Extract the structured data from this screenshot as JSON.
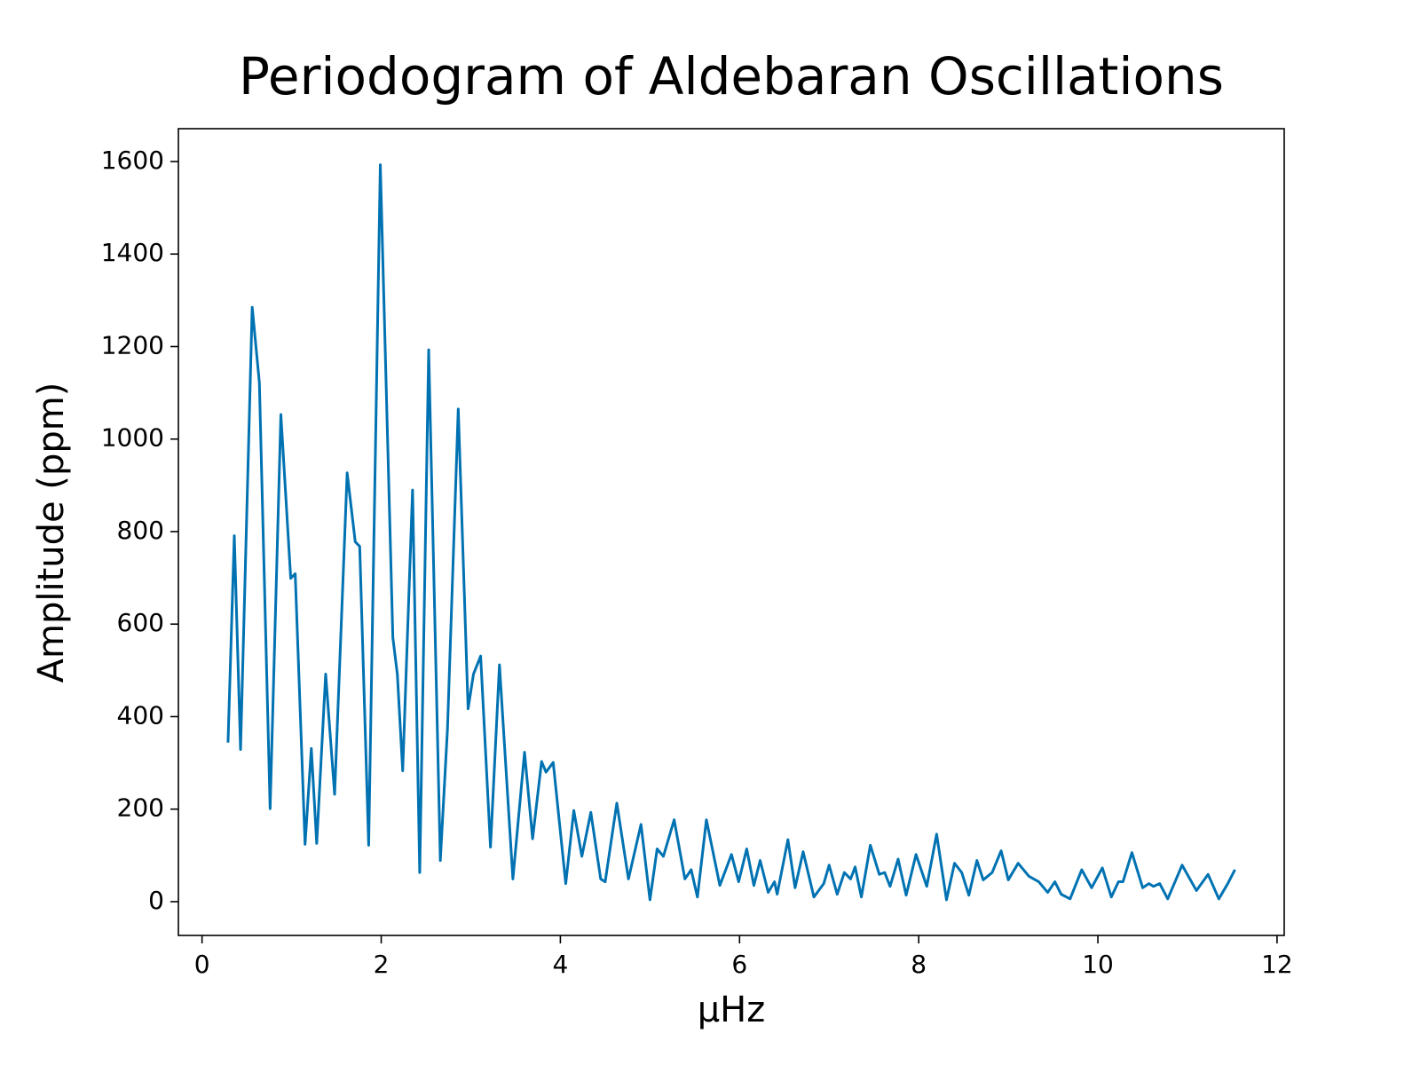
{
  "chart_data": {
    "type": "line",
    "title": "Periodogram of Aldebaran Oscillations",
    "x_label": "μHz",
    "y_label": "Amplitude (ppm)",
    "color": "#0072b2",
    "grid": false,
    "xlim": [
      -0.264,
      12.08
    ],
    "ylim": [
      -73,
      1671
    ],
    "xticks": [
      0,
      2,
      4,
      6,
      8,
      10,
      12
    ],
    "yticks": [
      0,
      200,
      400,
      600,
      800,
      1000,
      1200,
      1400,
      1600
    ],
    "x": [
      0.29,
      0.36,
      0.43,
      0.56,
      0.64,
      0.76,
      0.88,
      0.99,
      1.04,
      1.15,
      1.22,
      1.28,
      1.38,
      1.48,
      1.62,
      1.71,
      1.76,
      1.86,
      1.99,
      2.13,
      2.18,
      2.24,
      2.35,
      2.43,
      2.53,
      2.66,
      2.74,
      2.86,
      2.97,
      3.03,
      3.11,
      3.22,
      3.32,
      3.47,
      3.6,
      3.69,
      3.79,
      3.84,
      3.92,
      4.06,
      4.15,
      4.24,
      4.34,
      4.45,
      4.5,
      4.63,
      4.76,
      4.9,
      5.0,
      5.08,
      5.15,
      5.27,
      5.39,
      5.46,
      5.53,
      5.63,
      5.78,
      5.91,
      5.99,
      6.08,
      6.16,
      6.23,
      6.32,
      6.39,
      6.42,
      6.54,
      6.62,
      6.71,
      6.83,
      6.94,
      7.0,
      7.09,
      7.17,
      7.24,
      7.29,
      7.36,
      7.46,
      7.56,
      7.62,
      7.68,
      7.77,
      7.86,
      7.97,
      8.09,
      8.2,
      8.31,
      8.4,
      8.48,
      8.56,
      8.65,
      8.72,
      8.82,
      8.92,
      9.0,
      9.11,
      9.23,
      9.34,
      9.44,
      9.52,
      9.59,
      9.69,
      9.82,
      9.93,
      10.05,
      10.15,
      10.23,
      10.28,
      10.38,
      10.5,
      10.57,
      10.62,
      10.69,
      10.78,
      10.94,
      11.1,
      11.23,
      11.35,
      11.45,
      11.53
    ],
    "values": [
      344,
      791,
      329,
      1285,
      1122,
      201,
      1053,
      699,
      709,
      124,
      331,
      126,
      492,
      232,
      927,
      778,
      768,
      122,
      1593,
      571,
      492,
      283,
      890,
      63,
      1193,
      89,
      374,
      1065,
      417,
      492,
      531,
      118,
      512,
      49,
      323,
      136,
      303,
      280,
      301,
      39,
      197,
      98,
      193,
      49,
      43,
      213,
      49,
      167,
      4,
      114,
      98,
      177,
      49,
      69,
      10,
      177,
      35,
      102,
      43,
      114,
      35,
      89,
      20,
      43,
      16,
      134,
      30,
      108,
      10,
      39,
      79,
      16,
      63,
      49,
      75,
      10,
      122,
      59,
      63,
      33,
      92,
      14,
      102,
      33,
      146,
      4,
      83,
      63,
      14,
      89,
      47,
      63,
      110,
      47,
      83,
      55,
      43,
      20,
      43,
      16,
      6,
      69,
      30,
      73,
      10,
      43,
      43,
      106,
      30,
      39,
      33,
      39,
      6,
      79,
      24,
      59,
      6,
      39,
      69
    ]
  }
}
